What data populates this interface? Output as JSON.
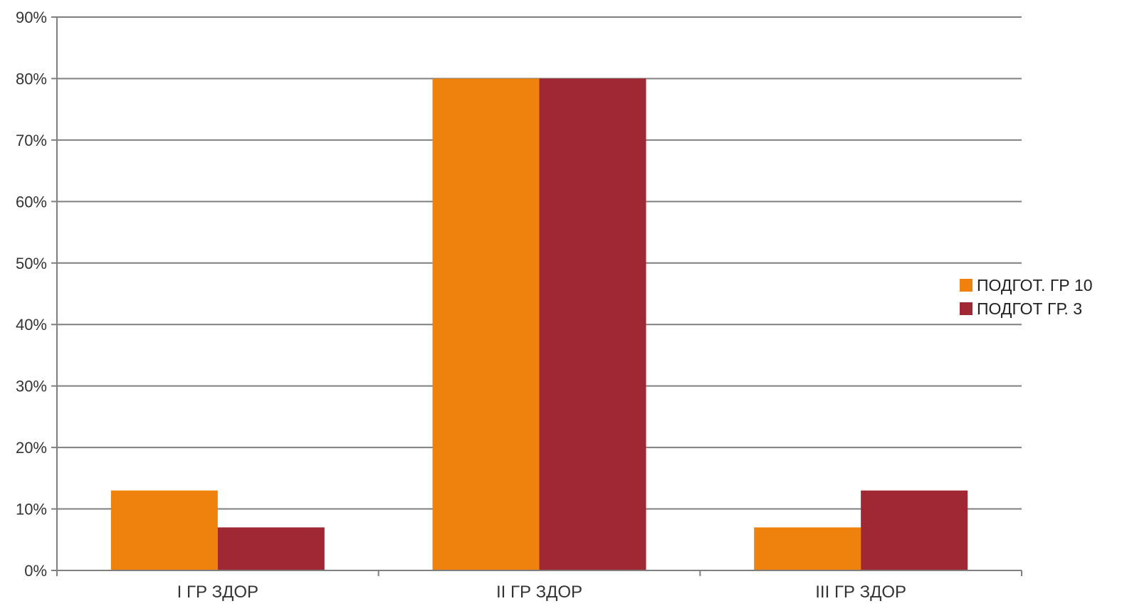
{
  "chart_data": {
    "type": "bar",
    "categories": [
      "I ГР ЗДОР",
      "II ГР ЗДОР",
      "III ГР ЗДОР"
    ],
    "series": [
      {
        "name": "ПОДГОТ. ГР 10",
        "values": [
          13,
          80,
          7
        ],
        "color": "#EE820D"
      },
      {
        "name": "ПОДГОТ ГР. 3",
        "values": [
          7,
          80,
          13
        ],
        "color": "#A02734"
      }
    ],
    "ylim": [
      0,
      90
    ],
    "ytick_step": 10,
    "ytick_suffix": "%",
    "grid": true,
    "legend": "right",
    "gridline_color": "#7f7f7f",
    "axis_color": "#7f7f7f"
  }
}
